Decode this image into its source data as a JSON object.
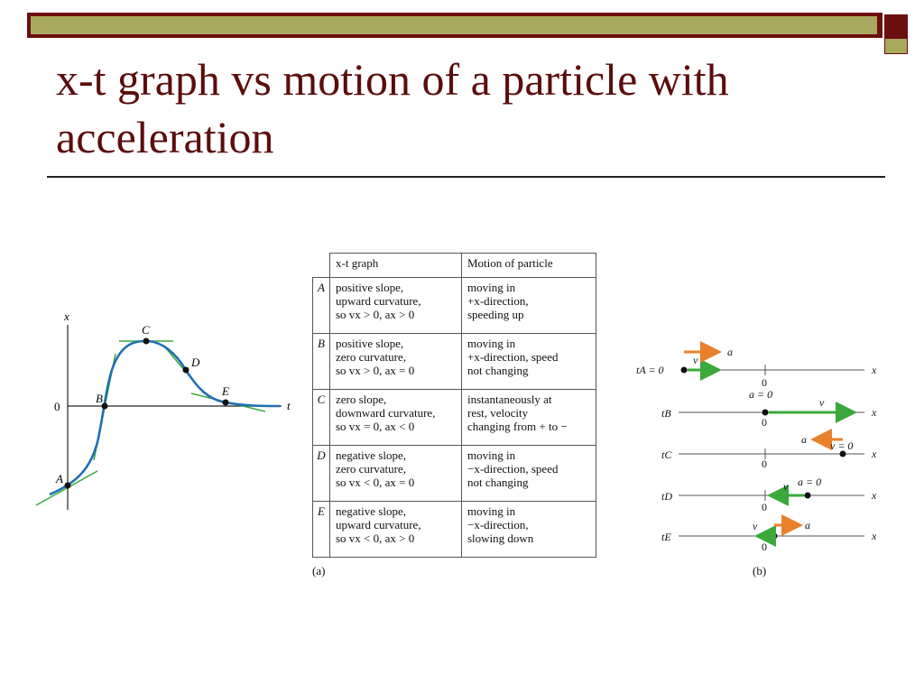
{
  "slide": {
    "title_line1": "x-t graph vs motion of a particle with",
    "title_line2": "acceleration"
  },
  "graph": {
    "x_axis_label": "x",
    "t_axis_label": "t",
    "origin_label": "0",
    "points": [
      "A",
      "B",
      "C",
      "D",
      "E"
    ]
  },
  "table": {
    "headers": [
      "x-t graph",
      "Motion of particle"
    ],
    "rows": [
      {
        "label": "A",
        "graph": [
          "positive slope,",
          "upward curvature,",
          "so vx > 0, ax > 0"
        ],
        "motion": [
          "moving in",
          "+x-direction,",
          "speeding up"
        ]
      },
      {
        "label": "B",
        "graph": [
          "positive slope,",
          "zero curvature,",
          "so vx > 0, ax = 0"
        ],
        "motion": [
          "moving in",
          "+x-direction, speed",
          "not changing"
        ]
      },
      {
        "label": "C",
        "graph": [
          "zero slope,",
          "downward curvature,",
          "so vx = 0, ax < 0"
        ],
        "motion": [
          "instantaneously at",
          "rest, velocity",
          "changing from + to −"
        ]
      },
      {
        "label": "D",
        "graph": [
          "negative slope,",
          "zero curvature,",
          "so vx < 0, ax = 0"
        ],
        "motion": [
          "moving in",
          "−x-direction, speed",
          "not changing"
        ]
      },
      {
        "label": "E",
        "graph": [
          "negative slope,",
          "upward curvature,",
          "so vx < 0, ax > 0"
        ],
        "motion": [
          "moving in",
          "−x-direction,",
          "slowing down"
        ]
      }
    ]
  },
  "captions": {
    "a": "(a)",
    "b": "(b)"
  },
  "motion_diagram": {
    "rows": [
      {
        "time": "tA = 0",
        "v_label": "v",
        "a_label": "a",
        "zero_label": "0",
        "x_label": "x"
      },
      {
        "time": "tB",
        "v_label": "v",
        "a_label": "a = 0",
        "zero_label": "0",
        "x_label": "x"
      },
      {
        "time": "tC",
        "v_label": "v = 0",
        "a_label": "a",
        "zero_label": "0",
        "x_label": "x"
      },
      {
        "time": "tD",
        "v_label": "v",
        "a_label": "a = 0",
        "zero_label": "0",
        "x_label": "x"
      },
      {
        "time": "tE",
        "v_label": "v",
        "a_label": "a",
        "zero_label": "0",
        "x_label": "x"
      }
    ]
  },
  "colors": {
    "curve": "#1f6fb3",
    "tangent": "#3aa83a",
    "velocity": "#3aa83a",
    "acceleration": "#e8812a",
    "title": "#5b0d0d"
  }
}
